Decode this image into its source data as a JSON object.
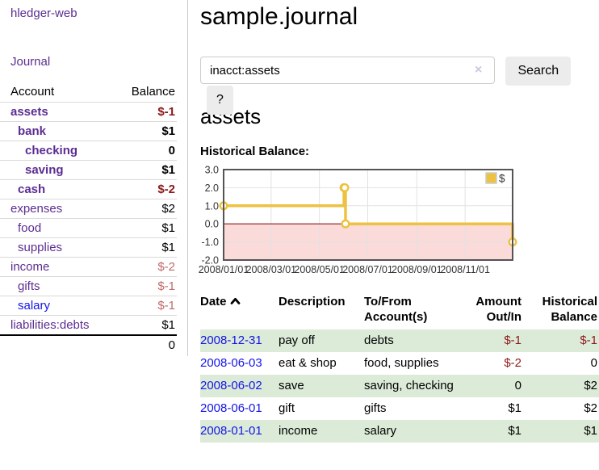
{
  "app_title": "hledger-web",
  "sidebar": {
    "journal_link": "Journal",
    "accounts_table": {
      "account_header": "Account",
      "balance_header": "Balance",
      "rows": [
        {
          "account": "assets",
          "balance": "$-1",
          "depth": 1,
          "bold": true,
          "account_color": "purple",
          "balance_color": "negative-strong"
        },
        {
          "account": "bank",
          "balance": "$1",
          "depth": 2,
          "bold": true,
          "account_color": "purple",
          "balance_color": "normal"
        },
        {
          "account": "checking",
          "balance": "0",
          "depth": 3,
          "bold": true,
          "account_color": "purple",
          "balance_color": "normal"
        },
        {
          "account": "saving",
          "balance": "$1",
          "depth": 3,
          "bold": true,
          "account_color": "purple",
          "balance_color": "normal"
        },
        {
          "account": "cash",
          "balance": "$-2",
          "depth": 2,
          "bold": true,
          "account_color": "purple",
          "balance_color": "negative-strong"
        },
        {
          "account": "expenses",
          "balance": "$2",
          "depth": 1,
          "bold": false,
          "account_color": "purple",
          "balance_color": "normal"
        },
        {
          "account": "food",
          "balance": "$1",
          "depth": 2,
          "bold": false,
          "account_color": "purple",
          "balance_color": "normal"
        },
        {
          "account": "supplies",
          "balance": "$1",
          "depth": 2,
          "bold": false,
          "account_color": "purple",
          "balance_color": "normal"
        },
        {
          "account": "income",
          "balance": "$-2",
          "depth": 1,
          "bold": false,
          "account_color": "purple",
          "balance_color": "negative-light"
        },
        {
          "account": "gifts",
          "balance": "$-1",
          "depth": 2,
          "bold": false,
          "account_color": "purple",
          "balance_color": "negative-light"
        },
        {
          "account": "salary",
          "balance": "$-1",
          "depth": 2,
          "bold": false,
          "account_color": "blue",
          "balance_color": "negative-light"
        },
        {
          "account": "liabilities:debts",
          "balance": "$1",
          "depth": 1,
          "bold": false,
          "account_color": "purple",
          "balance_color": "normal"
        }
      ],
      "total": "0"
    }
  },
  "main": {
    "title": "sample.journal",
    "search": {
      "value": "inacct:assets",
      "clear_icon": "×",
      "search_button": "Search",
      "help_button": "?"
    },
    "account_heading": "assets",
    "chart_title": "Historical Balance:"
  },
  "chart_data": {
    "type": "line",
    "title": "Historical Balance",
    "series": [
      {
        "name": "$",
        "color": "#edc240",
        "step": true,
        "points": [
          [
            "2008-01-01",
            1
          ],
          [
            "2008-06-01",
            2
          ],
          [
            "2008-06-02",
            2
          ],
          [
            "2008-06-03",
            0
          ],
          [
            "2008-12-31",
            -1
          ]
        ]
      }
    ],
    "xlim": [
      "2008-01-01",
      "2008-12-31"
    ],
    "ylim": [
      -2,
      3
    ],
    "y_ticks": [
      {
        "value": 3,
        "label": "3.0"
      },
      {
        "value": 2,
        "label": "2.0"
      },
      {
        "value": 1,
        "label": "1.0"
      },
      {
        "value": 0,
        "label": "0.0"
      },
      {
        "value": -1,
        "label": "-1.0"
      },
      {
        "value": -2,
        "label": "-2.0"
      }
    ],
    "x_ticks": [
      {
        "date": "2008-01-01",
        "label": "2008/01/01"
      },
      {
        "date": "2008-03-01",
        "label": "2008/03/01"
      },
      {
        "date": "2008-05-01",
        "label": "2008/05/01"
      },
      {
        "date": "2008-07-01",
        "label": "2008/07/01"
      },
      {
        "date": "2008-09-01",
        "label": "2008/09/01"
      },
      {
        "date": "2008-11-01",
        "label": "2008/11/01"
      }
    ],
    "grid": true,
    "legend": {
      "label": "$",
      "position": "top-right"
    },
    "colors": {
      "border": "#545454",
      "gridline": "#e2e2e2",
      "zero_line": "#8b1a1a",
      "negative_region": "#fbdada",
      "marker_fill": "#ffffff"
    }
  },
  "register_table": {
    "headers": {
      "date": "Date",
      "description": "Description",
      "accounts": "To/From Account(s)",
      "amount": "Amount Out/In",
      "balance": "Historical Balance"
    },
    "rows": [
      {
        "date": "2008-12-31",
        "description": "pay off",
        "accounts": "debts",
        "amount": "$-1",
        "amount_negative": true,
        "balance": "$-1",
        "balance_negative": true
      },
      {
        "date": "2008-06-03",
        "description": "eat & shop",
        "accounts": "food, supplies",
        "amount": "$-2",
        "amount_negative": true,
        "balance": "0",
        "balance_negative": false
      },
      {
        "date": "2008-06-02",
        "description": "save",
        "accounts": "saving, checking",
        "amount": "0",
        "amount_negative": false,
        "balance": "$2",
        "balance_negative": false
      },
      {
        "date": "2008-06-01",
        "description": "gift",
        "accounts": "gifts",
        "amount": "$1",
        "amount_negative": false,
        "balance": "$2",
        "balance_negative": false
      },
      {
        "date": "2008-01-01",
        "description": "income",
        "accounts": "salary",
        "amount": "$1",
        "amount_negative": false,
        "balance": "$1",
        "balance_negative": false
      }
    ]
  }
}
